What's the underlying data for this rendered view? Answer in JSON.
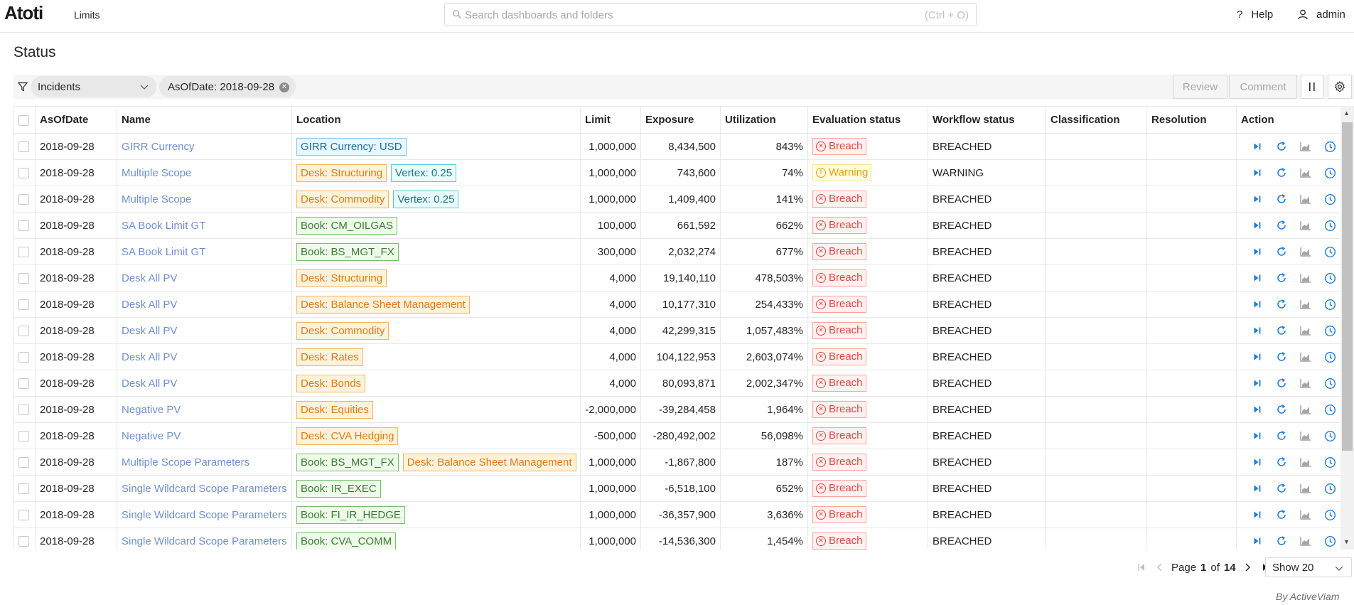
{
  "header": {
    "logo": "Atoti",
    "app_name": "Limits",
    "search_placeholder": "Search dashboards and folders",
    "search_shortcut": "(Ctrl + O)",
    "help_label": "Help",
    "user_label": "admin"
  },
  "page": {
    "title": "Status"
  },
  "filters": {
    "select_value": "Incidents",
    "chip_label": "AsOfDate: 2018-09-28"
  },
  "toolbar": {
    "review_label": "Review",
    "comment_label": "Comment"
  },
  "table": {
    "columns": [
      "AsOfDate",
      "Name",
      "Location",
      "Limit",
      "Exposure",
      "Utilization",
      "Evaluation status",
      "Workflow status",
      "Classification",
      "Resolution",
      "Action"
    ],
    "rows": [
      {
        "date": "2018-09-28",
        "name": "GIRR Currency",
        "tags": [
          {
            "text": "GIRR Currency: USD",
            "kind": "girr"
          }
        ],
        "limit": "1,000,000",
        "exposure": "8,434,500",
        "util": "843%",
        "eval": "Breach",
        "eval_kind": "breach",
        "workflow": "BREACHED"
      },
      {
        "date": "2018-09-28",
        "name": "Multiple Scope",
        "tags": [
          {
            "text": "Desk: Structuring",
            "kind": "desk"
          },
          {
            "text": "Vertex: 0.25",
            "kind": "vertex"
          }
        ],
        "limit": "1,000,000",
        "exposure": "743,600",
        "util": "74%",
        "eval": "Warning",
        "eval_kind": "warning",
        "workflow": "WARNING"
      },
      {
        "date": "2018-09-28",
        "name": "Multiple Scope",
        "tags": [
          {
            "text": "Desk: Commodity",
            "kind": "desk"
          },
          {
            "text": "Vertex: 0.25",
            "kind": "vertex"
          }
        ],
        "limit": "1,000,000",
        "exposure": "1,409,400",
        "util": "141%",
        "eval": "Breach",
        "eval_kind": "breach",
        "workflow": "BREACHED"
      },
      {
        "date": "2018-09-28",
        "name": "SA Book Limit GT",
        "tags": [
          {
            "text": "Book: CM_OILGAS",
            "kind": "book"
          }
        ],
        "limit": "100,000",
        "exposure": "661,592",
        "util": "662%",
        "eval": "Breach",
        "eval_kind": "breach",
        "workflow": "BREACHED"
      },
      {
        "date": "2018-09-28",
        "name": "SA Book Limit GT",
        "tags": [
          {
            "text": "Book: BS_MGT_FX",
            "kind": "book"
          }
        ],
        "limit": "300,000",
        "exposure": "2,032,274",
        "util": "677%",
        "eval": "Breach",
        "eval_kind": "breach",
        "workflow": "BREACHED"
      },
      {
        "date": "2018-09-28",
        "name": "Desk All PV",
        "tags": [
          {
            "text": "Desk: Structuring",
            "kind": "desk"
          }
        ],
        "limit": "4,000",
        "exposure": "19,140,110",
        "util": "478,503%",
        "eval": "Breach",
        "eval_kind": "breach",
        "workflow": "BREACHED"
      },
      {
        "date": "2018-09-28",
        "name": "Desk All PV",
        "tags": [
          {
            "text": "Desk: Balance Sheet Management",
            "kind": "desk"
          }
        ],
        "limit": "4,000",
        "exposure": "10,177,310",
        "util": "254,433%",
        "eval": "Breach",
        "eval_kind": "breach",
        "workflow": "BREACHED"
      },
      {
        "date": "2018-09-28",
        "name": "Desk All PV",
        "tags": [
          {
            "text": "Desk: Commodity",
            "kind": "desk"
          }
        ],
        "limit": "4,000",
        "exposure": "42,299,315",
        "util": "1,057,483%",
        "eval": "Breach",
        "eval_kind": "breach",
        "workflow": "BREACHED"
      },
      {
        "date": "2018-09-28",
        "name": "Desk All PV",
        "tags": [
          {
            "text": "Desk: Rates",
            "kind": "desk"
          }
        ],
        "limit": "4,000",
        "exposure": "104,122,953",
        "util": "2,603,074%",
        "eval": "Breach",
        "eval_kind": "breach",
        "workflow": "BREACHED"
      },
      {
        "date": "2018-09-28",
        "name": "Desk All PV",
        "tags": [
          {
            "text": "Desk: Bonds",
            "kind": "desk"
          }
        ],
        "limit": "4,000",
        "exposure": "80,093,871",
        "util": "2,002,347%",
        "eval": "Breach",
        "eval_kind": "breach",
        "workflow": "BREACHED"
      },
      {
        "date": "2018-09-28",
        "name": "Negative PV",
        "tags": [
          {
            "text": "Desk: Equities",
            "kind": "desk"
          }
        ],
        "limit": "-2,000,000",
        "exposure": "-39,284,458",
        "util": "1,964%",
        "eval": "Breach",
        "eval_kind": "breach",
        "workflow": "BREACHED"
      },
      {
        "date": "2018-09-28",
        "name": "Negative PV",
        "tags": [
          {
            "text": "Desk: CVA Hedging",
            "kind": "desk"
          }
        ],
        "limit": "-500,000",
        "exposure": "-280,492,002",
        "util": "56,098%",
        "eval": "Breach",
        "eval_kind": "breach",
        "workflow": "BREACHED"
      },
      {
        "date": "2018-09-28",
        "name": "Multiple Scope Parameters",
        "tags": [
          {
            "text": "Book: BS_MGT_FX",
            "kind": "book"
          },
          {
            "text": "Desk: Balance Sheet Management",
            "kind": "desk"
          }
        ],
        "limit": "1,000,000",
        "exposure": "-1,867,800",
        "util": "187%",
        "eval": "Breach",
        "eval_kind": "breach",
        "workflow": "BREACHED"
      },
      {
        "date": "2018-09-28",
        "name": "Single Wildcard Scope Parameters",
        "tags": [
          {
            "text": "Book: IR_EXEC",
            "kind": "book"
          }
        ],
        "limit": "1,000,000",
        "exposure": "-6,518,100",
        "util": "652%",
        "eval": "Breach",
        "eval_kind": "breach",
        "workflow": "BREACHED"
      },
      {
        "date": "2018-09-28",
        "name": "Single Wildcard Scope Parameters",
        "tags": [
          {
            "text": "Book: FI_IR_HEDGE",
            "kind": "book"
          }
        ],
        "limit": "1,000,000",
        "exposure": "-36,357,900",
        "util": "3,636%",
        "eval": "Breach",
        "eval_kind": "breach",
        "workflow": "BREACHED"
      },
      {
        "date": "2018-09-28",
        "name": "Single Wildcard Scope Parameters",
        "tags": [
          {
            "text": "Book: CVA_COMM",
            "kind": "book"
          }
        ],
        "limit": "1,000,000",
        "exposure": "-14,536,300",
        "util": "1,454%",
        "eval": "Breach",
        "eval_kind": "breach",
        "workflow": "BREACHED"
      }
    ],
    "action_icons": [
      "play-next-icon",
      "refresh-icon",
      "chart-icon",
      "history-icon"
    ]
  },
  "pagination": {
    "page_prefix": "Page",
    "current_page": "1",
    "of_label": "of",
    "total_pages": "14",
    "show_label": "Show 20"
  },
  "footer": {
    "credit": "By ActiveViam"
  },
  "colors": {
    "link": "#6f8fd1",
    "breach": "#e0463f",
    "warning": "#e8a000",
    "action_blue": "#1c7cd6"
  }
}
